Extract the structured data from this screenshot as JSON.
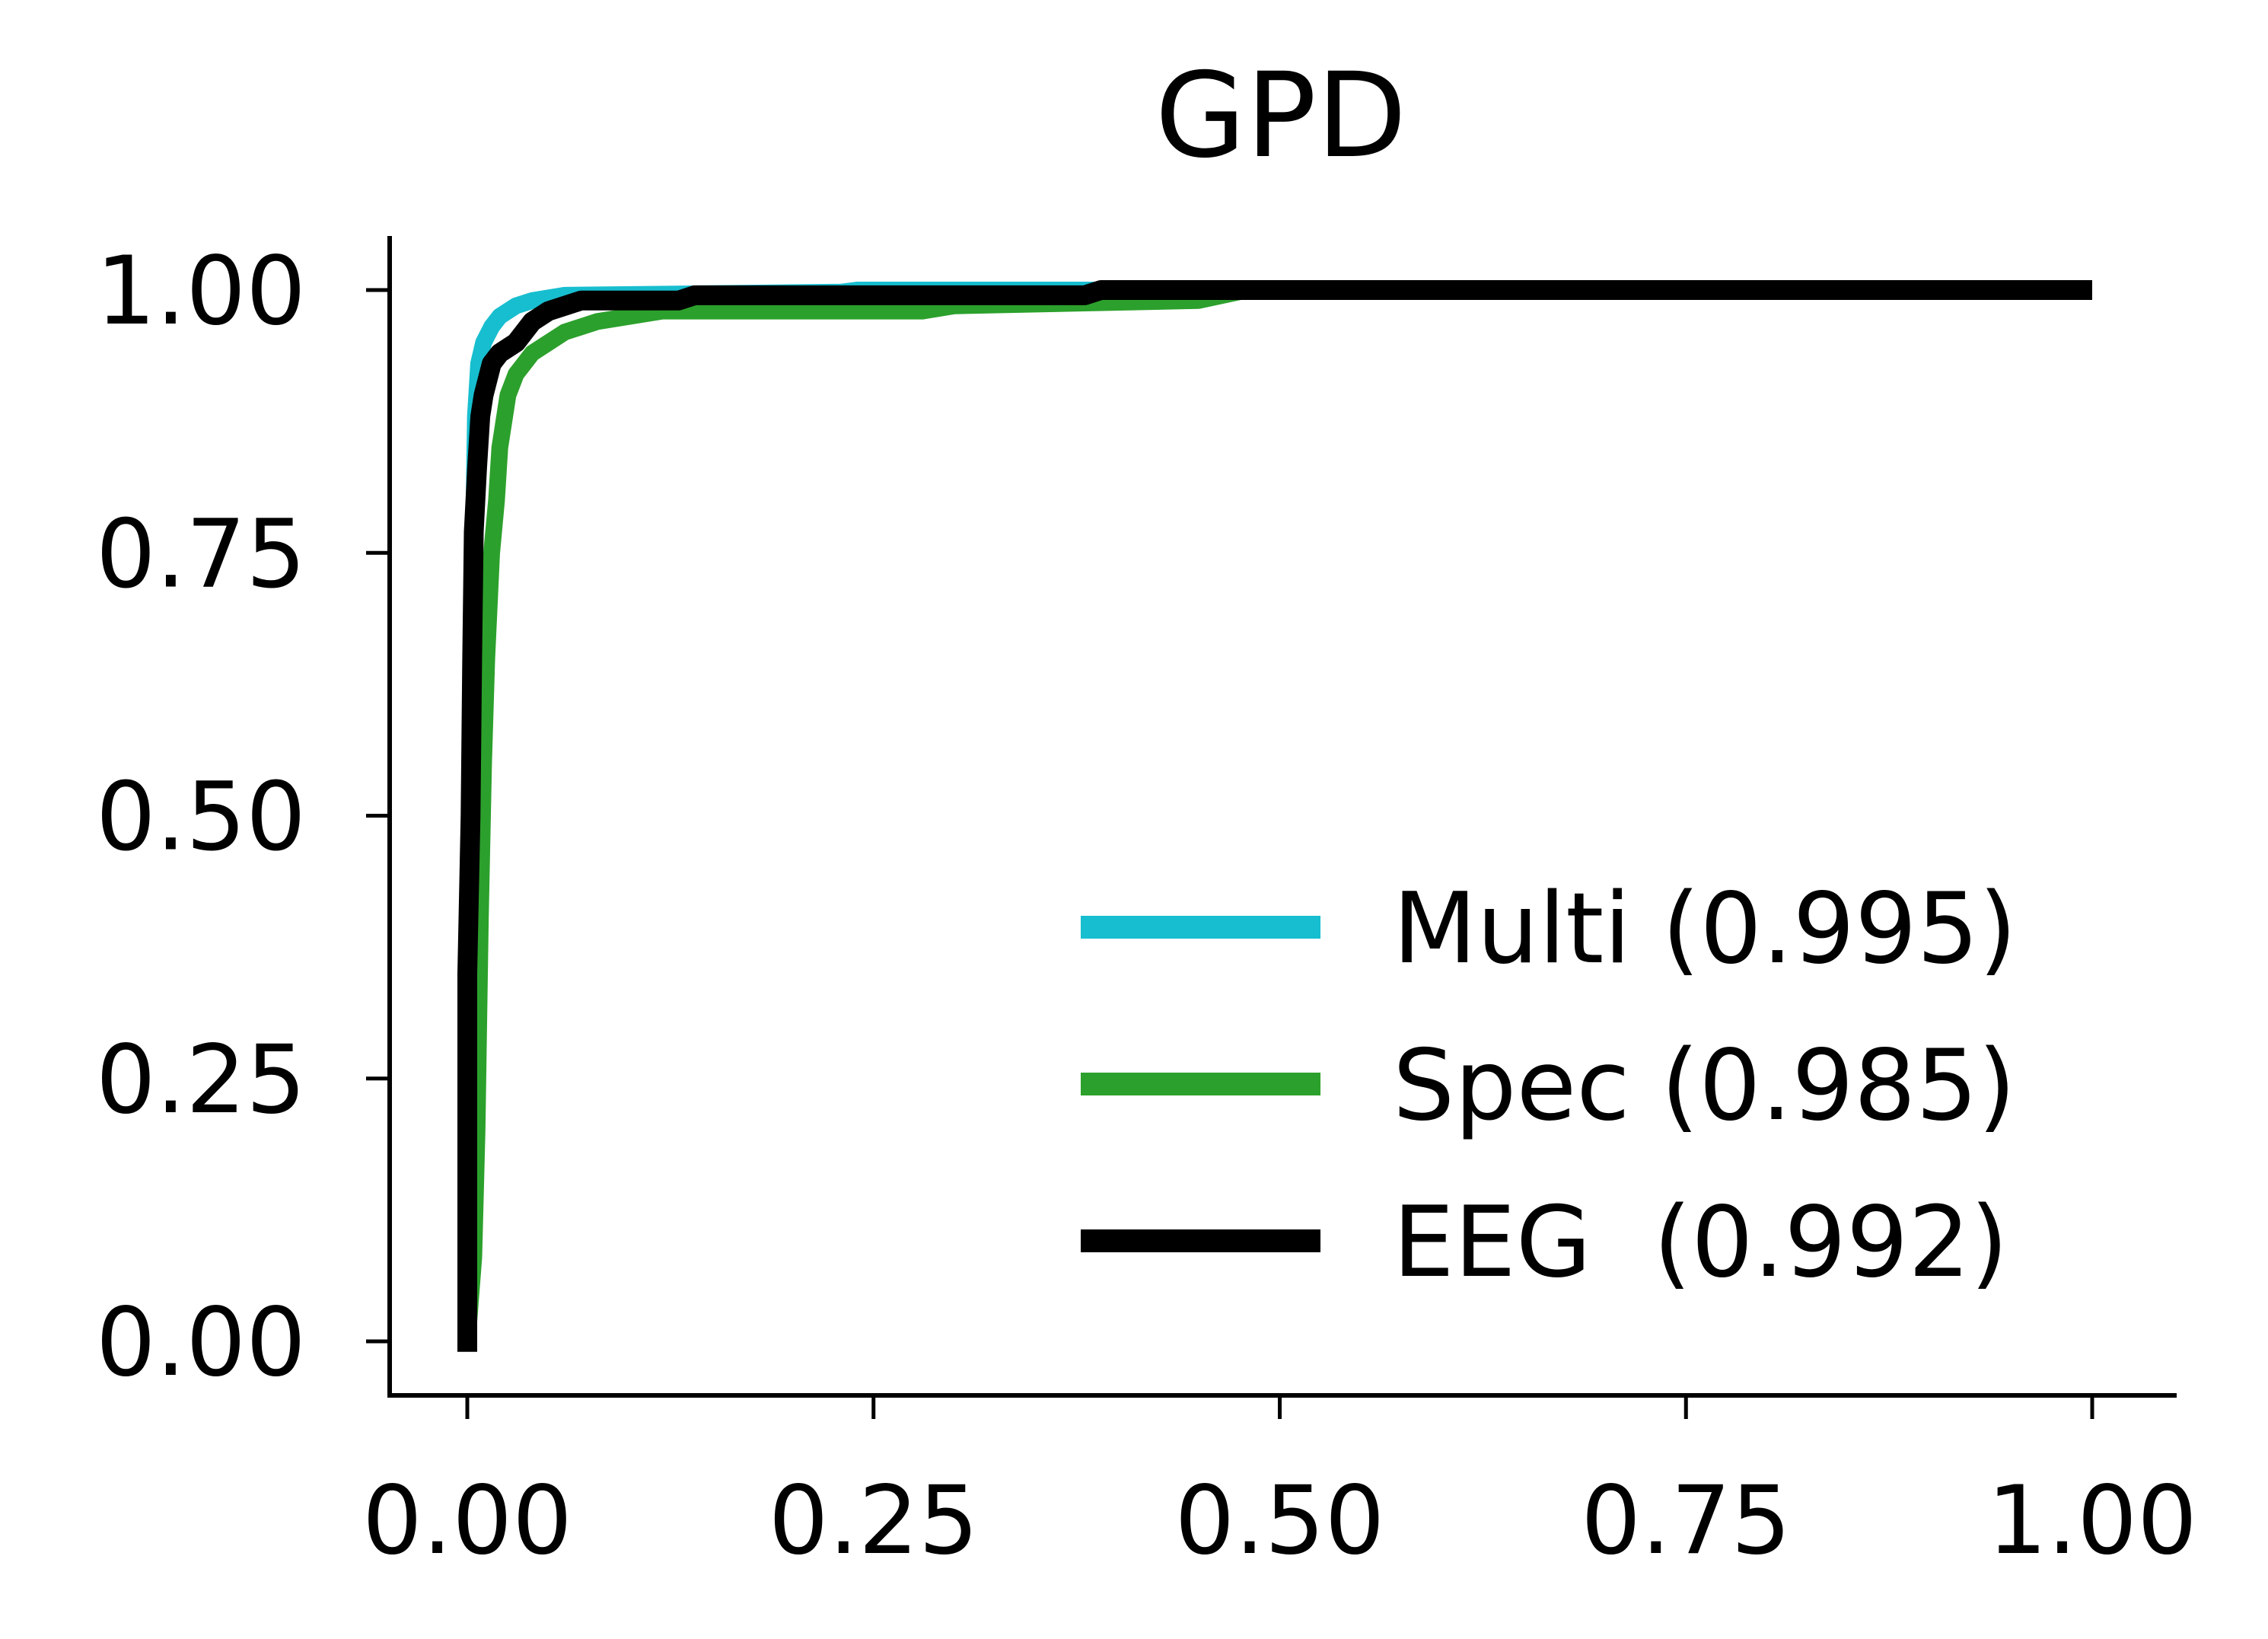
{
  "chart_data": {
    "type": "line",
    "title": "GPD",
    "xlabel": "",
    "ylabel": "",
    "xlim": [
      -0.05,
      1.05
    ],
    "ylim": [
      -0.05,
      1.05
    ],
    "xticks": [
      "0.00",
      "0.25",
      "0.50",
      "0.75",
      "1.00"
    ],
    "yticks": [
      "0.00",
      "0.25",
      "0.50",
      "0.75",
      "1.00"
    ],
    "grid": false,
    "legend_position": "lower-right",
    "series": [
      {
        "name": "Multi (0.995)",
        "color": "#17becf",
        "points": [
          [
            0,
            0
          ],
          [
            0.0,
            0.3
          ],
          [
            0.003,
            0.6
          ],
          [
            0.004,
            0.78
          ],
          [
            0.005,
            0.88
          ],
          [
            0.007,
            0.93
          ],
          [
            0.01,
            0.95
          ],
          [
            0.015,
            0.965
          ],
          [
            0.02,
            0.975
          ],
          [
            0.03,
            0.985
          ],
          [
            0.04,
            0.99
          ],
          [
            0.06,
            0.995
          ],
          [
            0.23,
            0.998
          ],
          [
            0.24,
            1.0
          ],
          [
            1.0,
            1.0
          ]
        ]
      },
      {
        "name": "Spec (0.985)",
        "color": "#2ca02c",
        "points": [
          [
            0,
            0
          ],
          [
            0.004,
            0.08
          ],
          [
            0.006,
            0.2
          ],
          [
            0.008,
            0.4
          ],
          [
            0.01,
            0.55
          ],
          [
            0.012,
            0.65
          ],
          [
            0.015,
            0.75
          ],
          [
            0.018,
            0.8
          ],
          [
            0.02,
            0.85
          ],
          [
            0.025,
            0.9
          ],
          [
            0.03,
            0.92
          ],
          [
            0.04,
            0.94
          ],
          [
            0.05,
            0.95
          ],
          [
            0.06,
            0.96
          ],
          [
            0.08,
            0.97
          ],
          [
            0.12,
            0.98
          ],
          [
            0.28,
            0.98
          ],
          [
            0.3,
            0.985
          ],
          [
            0.45,
            0.99
          ],
          [
            0.48,
            1.0
          ],
          [
            1.0,
            1.0
          ]
        ]
      },
      {
        "name": "EEG  (0.992)",
        "color": "#000000",
        "points": [
          [
            0,
            -0.01
          ],
          [
            0,
            0.35
          ],
          [
            0.002,
            0.5
          ],
          [
            0.003,
            0.65
          ],
          [
            0.004,
            0.77
          ],
          [
            0.006,
            0.83
          ],
          [
            0.008,
            0.88
          ],
          [
            0.01,
            0.9
          ],
          [
            0.015,
            0.93
          ],
          [
            0.02,
            0.94
          ],
          [
            0.03,
            0.95
          ],
          [
            0.04,
            0.97
          ],
          [
            0.05,
            0.98
          ],
          [
            0.07,
            0.99
          ],
          [
            0.13,
            0.99
          ],
          [
            0.14,
            0.995
          ],
          [
            0.38,
            0.995
          ],
          [
            0.39,
            1.0
          ],
          [
            1.0,
            1.0
          ]
        ]
      }
    ]
  }
}
